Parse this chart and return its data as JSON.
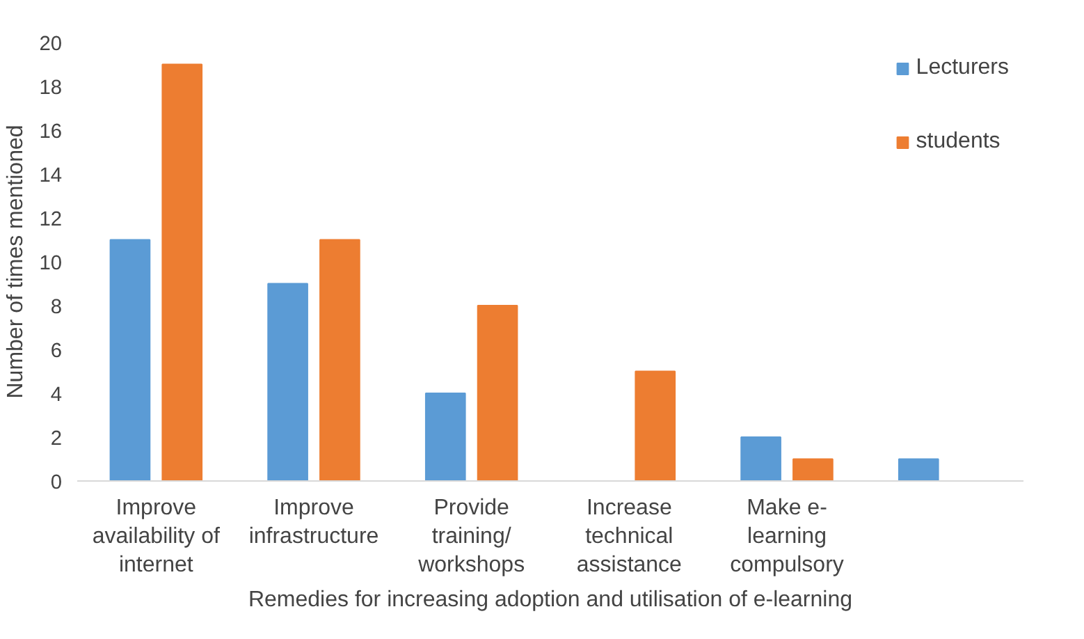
{
  "chart_data": {
    "type": "bar",
    "xlabel": "Remedies for increasing adoption and utilisation of e-learning",
    "ylabel": "Number of times mentioned",
    "categories": [
      "Improve\navailability of\ninternet",
      "Improve\ninfrastructure",
      "Provide\ntraining/\nworkshops",
      "Increase\ntechnical\nassistance",
      "Make e-\nlearning\ncompulsory",
      null
    ],
    "series": [
      {
        "name": "Lecturers",
        "color": "#5b9bd5",
        "values": [
          11,
          9,
          4,
          null,
          2,
          1
        ]
      },
      {
        "name": "students",
        "color": "#ed7d31",
        "values": [
          19,
          11,
          8,
          5,
          1,
          null
        ]
      }
    ],
    "ylim": [
      0,
      20
    ],
    "yticks": [
      0,
      2,
      4,
      6,
      8,
      10,
      12,
      14,
      16,
      18,
      20
    ],
    "grid": false,
    "legend": "right"
  }
}
